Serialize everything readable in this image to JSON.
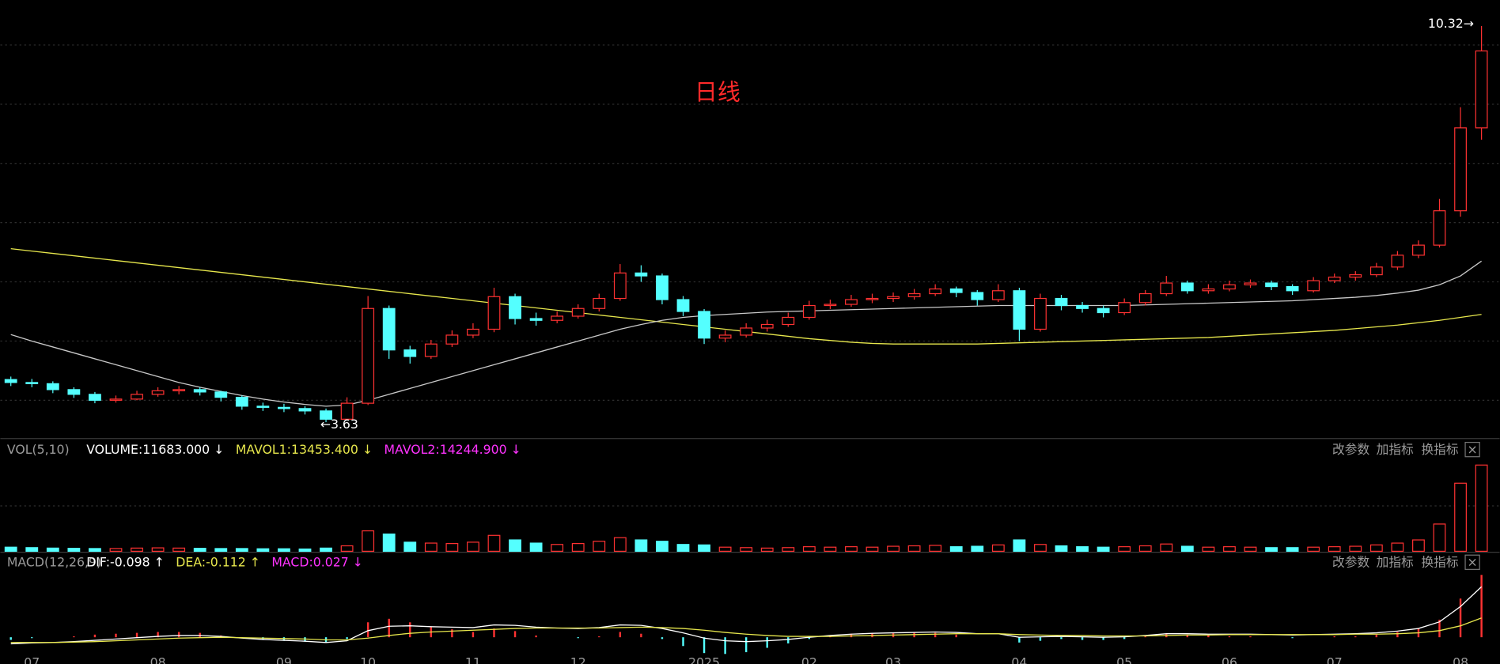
{
  "chart_data": [
    {
      "type": "candlestick",
      "title": "日线",
      "up_color": "#ff3232",
      "down_color": "#54ffff",
      "categories": [
        null,
        "07",
        null,
        null,
        null,
        null,
        null,
        "08",
        null,
        null,
        null,
        null,
        null,
        "09",
        null,
        null,
        null,
        "10",
        null,
        null,
        null,
        null,
        "11",
        null,
        null,
        null,
        null,
        "12",
        null,
        null,
        null,
        null,
        null,
        "2025",
        null,
        null,
        null,
        null,
        "02",
        null,
        null,
        null,
        "03",
        null,
        null,
        null,
        null,
        null,
        "04",
        null,
        null,
        null,
        null,
        "05",
        null,
        null,
        null,
        null,
        "06",
        null,
        null,
        null,
        null,
        "07",
        null,
        null,
        null,
        null,
        null,
        "08",
        null
      ],
      "ohlc": [
        [
          4.35,
          4.4,
          4.24,
          4.3
        ],
        [
          4.3,
          4.36,
          4.22,
          4.28
        ],
        [
          4.28,
          4.32,
          4.12,
          4.18
        ],
        [
          4.18,
          4.22,
          4.04,
          4.1
        ],
        [
          4.1,
          4.14,
          3.95,
          4.0
        ],
        [
          4.0,
          4.08,
          3.96,
          4.02
        ],
        [
          4.02,
          4.16,
          4.0,
          4.1
        ],
        [
          4.1,
          4.22,
          4.06,
          4.16
        ],
        [
          4.16,
          4.24,
          4.1,
          4.18
        ],
        [
          4.18,
          4.22,
          4.08,
          4.14
        ],
        [
          4.14,
          4.16,
          3.98,
          4.05
        ],
        [
          4.05,
          4.08,
          3.84,
          3.9
        ],
        [
          3.9,
          3.96,
          3.82,
          3.88
        ],
        [
          3.88,
          3.94,
          3.8,
          3.86
        ],
        [
          3.86,
          3.9,
          3.76,
          3.82
        ],
        [
          3.82,
          3.86,
          3.63,
          3.68
        ],
        [
          3.68,
          4.05,
          3.66,
          3.95
        ],
        [
          3.95,
          5.76,
          3.92,
          5.55
        ],
        [
          5.55,
          5.6,
          4.7,
          4.85
        ],
        [
          4.85,
          4.92,
          4.62,
          4.74
        ],
        [
          4.74,
          5.02,
          4.7,
          4.95
        ],
        [
          4.95,
          5.18,
          4.9,
          5.1
        ],
        [
          5.1,
          5.3,
          5.05,
          5.2
        ],
        [
          5.2,
          5.9,
          5.15,
          5.75
        ],
        [
          5.75,
          5.8,
          5.28,
          5.38
        ],
        [
          5.38,
          5.48,
          5.26,
          5.35
        ],
        [
          5.35,
          5.5,
          5.3,
          5.42
        ],
        [
          5.42,
          5.62,
          5.38,
          5.55
        ],
        [
          5.55,
          5.8,
          5.5,
          5.72
        ],
        [
          5.72,
          6.3,
          5.68,
          6.15
        ],
        [
          6.15,
          6.28,
          6.0,
          6.1
        ],
        [
          6.1,
          6.14,
          5.62,
          5.7
        ],
        [
          5.7,
          5.76,
          5.42,
          5.5
        ],
        [
          5.5,
          5.54,
          4.95,
          5.05
        ],
        [
          5.05,
          5.18,
          4.98,
          5.1
        ],
        [
          5.1,
          5.3,
          5.06,
          5.22
        ],
        [
          5.22,
          5.36,
          5.16,
          5.28
        ],
        [
          5.28,
          5.48,
          5.24,
          5.4
        ],
        [
          5.4,
          5.68,
          5.36,
          5.6
        ],
        [
          5.6,
          5.7,
          5.54,
          5.62
        ],
        [
          5.62,
          5.78,
          5.58,
          5.7
        ],
        [
          5.7,
          5.8,
          5.64,
          5.72
        ],
        [
          5.72,
          5.82,
          5.66,
          5.75
        ],
        [
          5.75,
          5.88,
          5.7,
          5.8
        ],
        [
          5.8,
          5.96,
          5.76,
          5.88
        ],
        [
          5.88,
          5.92,
          5.74,
          5.82
        ],
        [
          5.82,
          5.86,
          5.6,
          5.7
        ],
        [
          5.7,
          5.96,
          5.66,
          5.85
        ],
        [
          5.85,
          5.9,
          5.0,
          5.2
        ],
        [
          5.2,
          5.8,
          5.16,
          5.72
        ],
        [
          5.72,
          5.78,
          5.52,
          5.6
        ],
        [
          5.6,
          5.66,
          5.48,
          5.55
        ],
        [
          5.55,
          5.6,
          5.4,
          5.48
        ],
        [
          5.48,
          5.72,
          5.44,
          5.65
        ],
        [
          5.65,
          5.86,
          5.6,
          5.8
        ],
        [
          5.8,
          6.1,
          5.76,
          5.98
        ],
        [
          5.98,
          6.02,
          5.8,
          5.85
        ],
        [
          5.85,
          5.96,
          5.8,
          5.88
        ],
        [
          5.88,
          6.02,
          5.84,
          5.95
        ],
        [
          5.95,
          6.04,
          5.9,
          5.98
        ],
        [
          5.98,
          6.02,
          5.86,
          5.92
        ],
        [
          5.92,
          5.96,
          5.78,
          5.85
        ],
        [
          5.85,
          6.08,
          5.82,
          6.02
        ],
        [
          6.02,
          6.14,
          5.98,
          6.08
        ],
        [
          6.08,
          6.18,
          6.02,
          6.12
        ],
        [
          6.12,
          6.32,
          6.08,
          6.25
        ],
        [
          6.25,
          6.52,
          6.2,
          6.45
        ],
        [
          6.45,
          6.7,
          6.4,
          6.62
        ],
        [
          6.62,
          7.4,
          6.58,
          7.2
        ],
        [
          7.2,
          8.95,
          7.1,
          8.6
        ],
        [
          8.6,
          10.32,
          8.4,
          9.9
        ]
      ],
      "moving_averages": [
        {
          "color": "#e6e64c",
          "values": [
            6.56,
            6.52,
            6.48,
            6.44,
            6.4,
            6.36,
            6.32,
            6.28,
            6.24,
            6.2,
            6.16,
            6.12,
            6.08,
            6.04,
            6.0,
            5.96,
            5.92,
            5.88,
            5.84,
            5.8,
            5.76,
            5.72,
            5.68,
            5.64,
            5.6,
            5.56,
            5.52,
            5.48,
            5.44,
            5.4,
            5.36,
            5.32,
            5.28,
            5.24,
            5.2,
            5.16,
            5.12,
            5.08,
            5.04,
            5.01,
            4.98,
            4.96,
            4.95,
            4.95,
            4.95,
            4.95,
            4.95,
            4.96,
            4.97,
            4.98,
            4.99,
            5.0,
            5.01,
            5.02,
            5.03,
            5.04,
            5.05,
            5.06,
            5.08,
            5.1,
            5.12,
            5.14,
            5.16,
            5.18,
            5.21,
            5.24,
            5.27,
            5.31,
            5.35,
            5.4,
            5.45
          ]
        },
        {
          "color": "#c8c8c8",
          "values": [
            5.11,
            5.0,
            4.9,
            4.8,
            4.7,
            4.6,
            4.5,
            4.4,
            4.3,
            4.22,
            4.15,
            4.08,
            4.02,
            3.97,
            3.93,
            3.9,
            3.92,
            4.0,
            4.1,
            4.2,
            4.3,
            4.4,
            4.5,
            4.6,
            4.7,
            4.8,
            4.9,
            5.0,
            5.1,
            5.2,
            5.28,
            5.35,
            5.4,
            5.43,
            5.45,
            5.47,
            5.49,
            5.5,
            5.51,
            5.52,
            5.53,
            5.54,
            5.55,
            5.56,
            5.57,
            5.58,
            5.59,
            5.6,
            5.6,
            5.6,
            5.6,
            5.6,
            5.6,
            5.6,
            5.61,
            5.62,
            5.63,
            5.64,
            5.65,
            5.66,
            5.67,
            5.68,
            5.7,
            5.72,
            5.74,
            5.77,
            5.81,
            5.86,
            5.95,
            6.1,
            6.35
          ]
        }
      ],
      "high_label": {
        "value": 10.32,
        "label": "10.32→"
      },
      "low_label": {
        "value": 3.63,
        "label": "←3.63"
      },
      "ylim": [
        3.37,
        10.76
      ],
      "yticks": [
        4,
        5,
        6,
        7,
        8,
        9,
        10
      ],
      "grid": true
    },
    {
      "type": "bar",
      "title": "VOL(5,10)",
      "legend": [
        {
          "text": "VOLUME:11683.000 ↓",
          "color": "#ffffff"
        },
        {
          "text": "MAVOL1:13453.400 ↓",
          "color": "#e6e64c"
        },
        {
          "text": "MAVOL2:14244.900 ↓",
          "color": "#ff33ff"
        }
      ],
      "values": [
        9000,
        8000,
        7000,
        6500,
        6000,
        6000,
        7000,
        7500,
        7000,
        6500,
        6000,
        6000,
        5500,
        5500,
        5000,
        7000,
        12000,
        45000,
        38000,
        20000,
        18000,
        17000,
        20000,
        35000,
        25000,
        18000,
        15000,
        17000,
        22000,
        30000,
        25000,
        22000,
        15000,
        14000,
        9000,
        8000,
        7000,
        8000,
        10000,
        9000,
        10000,
        9000,
        11000,
        12000,
        13000,
        10000,
        11000,
        14000,
        25000,
        15000,
        12000,
        10000,
        9000,
        10000,
        12000,
        16000,
        11000,
        9000,
        10000,
        9000,
        8000,
        8000,
        9000,
        10000,
        11000,
        14000,
        18000,
        25000,
        60000,
        150000,
        190000
      ],
      "ylim": [
        0,
        200000
      ],
      "yticks": [
        100000
      ],
      "grid": true
    },
    {
      "type": "macd",
      "title": "MACD(12,26,9)",
      "legend": [
        {
          "text": "DIF:-0.098 ↑",
          "color": "#ffffff"
        },
        {
          "text": "DEA:-0.112 ↑",
          "color": "#e6e64c"
        },
        {
          "text": "MACD:0.027 ↓",
          "color": "#ff33ff"
        }
      ],
      "dif": [
        -0.15,
        -0.13,
        -0.12,
        -0.1,
        -0.07,
        -0.04,
        -0.01,
        0.02,
        0.04,
        0.04,
        0.02,
        -0.02,
        -0.05,
        -0.07,
        -0.09,
        -0.12,
        -0.08,
        0.15,
        0.25,
        0.26,
        0.24,
        0.23,
        0.22,
        0.28,
        0.27,
        0.23,
        0.21,
        0.2,
        0.22,
        0.28,
        0.27,
        0.2,
        0.1,
        -0.02,
        -0.08,
        -0.1,
        -0.08,
        -0.05,
        0.0,
        0.04,
        0.07,
        0.09,
        0.1,
        0.11,
        0.12,
        0.11,
        0.08,
        0.08,
        0.0,
        0.01,
        0.02,
        0.01,
        0.0,
        0.01,
        0.04,
        0.08,
        0.08,
        0.07,
        0.07,
        0.07,
        0.06,
        0.05,
        0.06,
        0.07,
        0.08,
        0.1,
        0.14,
        0.2,
        0.35,
        0.7,
        1.15
      ],
      "dea": [
        -0.12,
        -0.12,
        -0.12,
        -0.11,
        -0.1,
        -0.08,
        -0.06,
        -0.04,
        -0.02,
        -0.01,
        0.0,
        -0.01,
        -0.02,
        -0.03,
        -0.04,
        -0.06,
        -0.06,
        -0.02,
        0.04,
        0.09,
        0.12,
        0.14,
        0.16,
        0.18,
        0.2,
        0.21,
        0.21,
        0.21,
        0.21,
        0.22,
        0.23,
        0.22,
        0.2,
        0.16,
        0.11,
        0.07,
        0.04,
        0.02,
        0.02,
        0.02,
        0.03,
        0.04,
        0.05,
        0.06,
        0.07,
        0.08,
        0.08,
        0.08,
        0.06,
        0.05,
        0.04,
        0.04,
        0.03,
        0.03,
        0.03,
        0.04,
        0.05,
        0.05,
        0.06,
        0.06,
        0.06,
        0.06,
        0.06,
        0.06,
        0.07,
        0.07,
        0.08,
        0.1,
        0.15,
        0.26,
        0.44
      ],
      "values": [
        -0.06,
        -0.02,
        0.0,
        0.02,
        0.06,
        0.08,
        0.1,
        0.12,
        0.12,
        0.1,
        0.04,
        -0.02,
        -0.06,
        -0.08,
        -0.1,
        -0.12,
        -0.04,
        0.34,
        0.42,
        0.34,
        0.24,
        0.18,
        0.12,
        0.2,
        0.14,
        0.04,
        0.0,
        -0.02,
        0.02,
        0.12,
        0.08,
        -0.04,
        -0.2,
        -0.36,
        -0.38,
        -0.34,
        -0.24,
        -0.14,
        -0.04,
        0.04,
        0.08,
        0.1,
        0.1,
        0.1,
        0.1,
        0.06,
        0.0,
        0.0,
        -0.12,
        -0.08,
        -0.04,
        -0.06,
        -0.06,
        -0.04,
        0.02,
        0.08,
        0.06,
        0.04,
        0.02,
        0.02,
        0.0,
        -0.02,
        0.0,
        0.02,
        0.02,
        0.06,
        0.12,
        0.2,
        0.4,
        0.88,
        1.42
      ],
      "dif_color": "#ffffff",
      "dea_color": "#e6e64c",
      "up_color": "#ff3232",
      "down_color": "#54ffff",
      "ylim": [
        -0.5,
        1.5
      ]
    }
  ],
  "toolbar": {
    "buttons": [
      "改参数",
      "加指标",
      "换指标"
    ],
    "close": "×"
  }
}
